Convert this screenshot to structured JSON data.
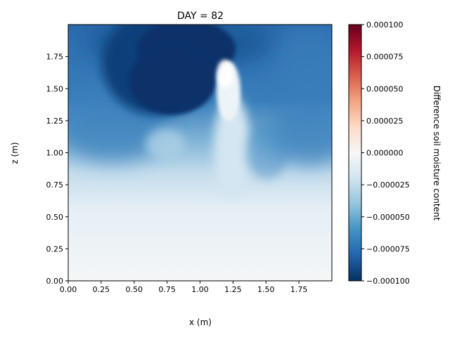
{
  "chart_data": {
    "type": "heatmap",
    "title": "DAY = 82",
    "xlabel": "x (m)",
    "ylabel": "z (m)",
    "xlim": [
      0.0,
      2.0
    ],
    "ylim": [
      0.0,
      2.0
    ],
    "x_ticks": [
      "0.00",
      "0.25",
      "0.50",
      "0.75",
      "1.00",
      "1.25",
      "1.50",
      "1.75"
    ],
    "y_ticks": [
      "0.00",
      "0.25",
      "0.50",
      "0.75",
      "1.00",
      "1.25",
      "1.50",
      "1.75"
    ],
    "colorbar": {
      "label": "Difference soil moisture content",
      "range": [
        -0.0001,
        0.0001
      ],
      "ticks": [
        "−0.000100",
        "−0.000075",
        "−0.000050",
        "−0.000025",
        "0.000000",
        "0.000025",
        "0.000050",
        "0.000075",
        "0.000100"
      ],
      "colormap": "RdBu_r",
      "stops": [
        "#053061",
        "#2166ac",
        "#4393c3",
        "#92c5de",
        "#d1e5f0",
        "#f7f7f7",
        "#fddbc7",
        "#f4a582",
        "#d6604d",
        "#b2182b",
        "#67001f"
      ]
    },
    "field_features": [
      {
        "feature": "dry pocket",
        "x": [
          0.3,
          1.1
        ],
        "z": [
          1.3,
          2.0
        ],
        "value": -0.0001
      },
      {
        "feature": "wet plume",
        "x": [
          1.1,
          1.3
        ],
        "z": [
          0.7,
          1.8
        ],
        "value": -1e-05
      },
      {
        "feature": "surface layer",
        "x": [
          0.0,
          2.0
        ],
        "z": [
          0.0,
          0.5
        ],
        "value": -3e-06
      }
    ]
  }
}
